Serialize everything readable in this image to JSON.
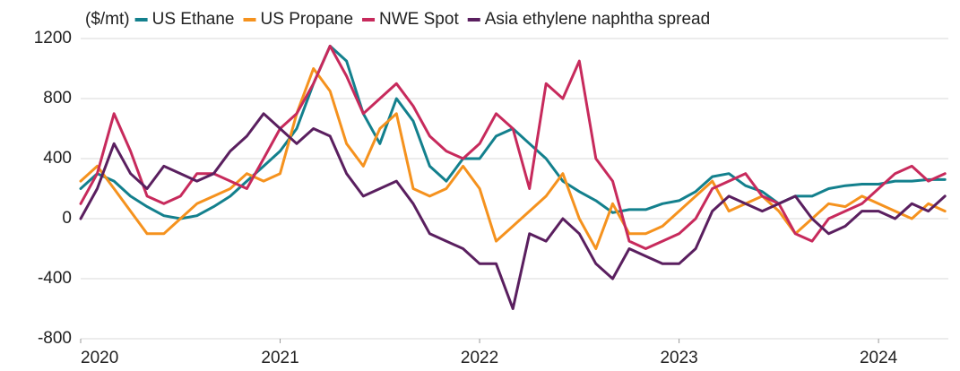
{
  "chart_data": {
    "type": "line",
    "y_label": "($/mt)",
    "x": [
      2020,
      2020.083,
      2020.167,
      2020.25,
      2020.333,
      2020.417,
      2020.5,
      2020.583,
      2020.667,
      2020.75,
      2020.833,
      2020.917,
      2021,
      2021.083,
      2021.167,
      2021.25,
      2021.333,
      2021.417,
      2021.5,
      2021.583,
      2021.667,
      2021.75,
      2021.833,
      2021.917,
      2022,
      2022.083,
      2022.167,
      2022.25,
      2022.333,
      2022.417,
      2022.5,
      2022.583,
      2022.667,
      2022.75,
      2022.833,
      2022.917,
      2023,
      2023.083,
      2023.167,
      2023.25,
      2023.333,
      2023.417,
      2023.5,
      2023.583,
      2023.667,
      2023.75,
      2023.833,
      2023.917,
      2024,
      2024.083,
      2024.167,
      2024.25,
      2024.333
    ],
    "series": [
      {
        "name": "US Ethane",
        "color": "#13808d",
        "values": [
          200,
          300,
          250,
          150,
          80,
          20,
          0,
          20,
          80,
          150,
          250,
          350,
          450,
          600,
          900,
          1150,
          1050,
          700,
          500,
          800,
          650,
          350,
          250,
          400,
          400,
          550,
          600,
          500,
          400,
          250,
          180,
          120,
          40,
          60,
          60,
          100,
          120,
          180,
          280,
          300,
          220,
          180,
          100,
          150,
          150,
          200,
          220,
          230,
          230,
          250,
          250,
          260,
          260
        ]
      },
      {
        "name": "US Propane",
        "color": "#f5921e",
        "values": [
          250,
          350,
          200,
          50,
          -100,
          -100,
          0,
          100,
          150,
          200,
          300,
          250,
          300,
          700,
          1000,
          850,
          500,
          350,
          600,
          700,
          200,
          150,
          200,
          350,
          200,
          -150,
          -50,
          50,
          150,
          300,
          0,
          -200,
          100,
          -100,
          -100,
          -50,
          50,
          150,
          250,
          50,
          100,
          150,
          50,
          -100,
          0,
          100,
          80,
          150,
          100,
          50,
          0,
          100,
          50
        ]
      },
      {
        "name": "NWE Spot",
        "color": "#c72a5c",
        "values": [
          100,
          300,
          700,
          450,
          150,
          100,
          150,
          300,
          300,
          250,
          200,
          400,
          600,
          700,
          900,
          1150,
          950,
          700,
          800,
          900,
          750,
          550,
          450,
          400,
          500,
          700,
          600,
          200,
          900,
          800,
          1050,
          400,
          250,
          -150,
          -200,
          -150,
          -100,
          0,
          200,
          250,
          300,
          150,
          100,
          -100,
          -150,
          0,
          50,
          100,
          200,
          300,
          350,
          250,
          300
        ]
      },
      {
        "name": "Asia ethylene naphtha spread",
        "color": "#5a1f5f",
        "values": [
          0,
          200,
          500,
          300,
          200,
          350,
          300,
          250,
          300,
          450,
          550,
          700,
          600,
          500,
          600,
          550,
          300,
          150,
          200,
          250,
          100,
          -100,
          -150,
          -200,
          -300,
          -300,
          -600,
          -100,
          -150,
          0,
          -100,
          -300,
          -400,
          -200,
          -250,
          -300,
          -300,
          -200,
          50,
          150,
          100,
          50,
          100,
          150,
          0,
          -100,
          -50,
          50,
          50,
          0,
          100,
          50,
          150
        ]
      }
    ],
    "xlim": [
      2020,
      2024.35
    ],
    "xticks": [
      2020,
      2021,
      2022,
      2023,
      2024
    ],
    "ylim": [
      -800,
      1200
    ],
    "yticks": [
      -800,
      -400,
      0,
      400,
      800,
      1200
    ],
    "grid": true,
    "legend": "top"
  }
}
